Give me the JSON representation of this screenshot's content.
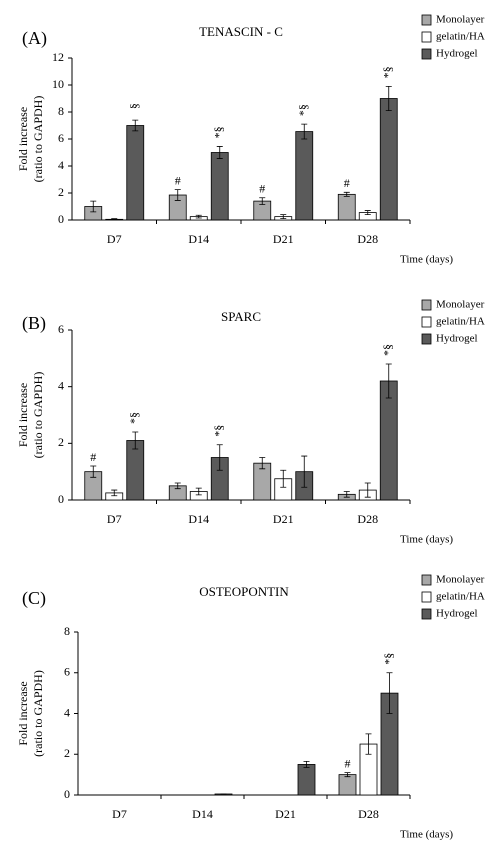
{
  "chart_data": [
    {
      "type": "bar",
      "panel_label": "(A)",
      "title": "TENASCIN - C",
      "ylabel": [
        "Fold increase",
        "(ratio to GAPDH)"
      ],
      "xlabel": "Time (days)",
      "categories": [
        "D7",
        "D14",
        "D21",
        "D28"
      ],
      "ylim": [
        0,
        12
      ],
      "yticks": [
        0,
        2,
        4,
        6,
        8,
        10,
        12
      ],
      "legend": "right",
      "series": [
        {
          "name": "Monolayer",
          "color": "#a8a8a8",
          "values": [
            1.0,
            1.85,
            1.4,
            1.9
          ],
          "errors": [
            0.4,
            0.4,
            0.25,
            0.15
          ],
          "labels": [
            null,
            "#",
            "#",
            "#"
          ]
        },
        {
          "name": "gelatin/HA",
          "color": "#ffffff",
          "values": [
            0.05,
            0.25,
            0.25,
            0.55
          ],
          "errors": [
            0.05,
            0.1,
            0.15,
            0.15
          ],
          "labels": [
            null,
            null,
            null,
            null
          ]
        },
        {
          "name": "Hydrogel",
          "color": "#5a5a5a",
          "values": [
            7.0,
            5.0,
            6.55,
            9.0
          ],
          "errors": [
            0.4,
            0.45,
            0.55,
            0.9
          ],
          "labels": [
            "§",
            "*§",
            "*§",
            "*§"
          ]
        }
      ]
    },
    {
      "type": "bar",
      "panel_label": "(B)",
      "title": "SPARC",
      "ylabel": [
        "Fold increase",
        "(ratio to GAPDH)"
      ],
      "xlabel": "Time (days)",
      "categories": [
        "D7",
        "D14",
        "D21",
        "D28"
      ],
      "ylim": [
        0,
        6
      ],
      "yticks": [
        0,
        2,
        4,
        6
      ],
      "legend": "right",
      "series": [
        {
          "name": "Monolayer",
          "color": "#a8a8a8",
          "values": [
            1.0,
            0.5,
            1.3,
            0.2
          ],
          "errors": [
            0.2,
            0.1,
            0.2,
            0.1
          ],
          "labels": [
            "#",
            null,
            null,
            null
          ]
        },
        {
          "name": "gelatin/HA",
          "color": "#ffffff",
          "values": [
            0.25,
            0.3,
            0.75,
            0.35
          ],
          "errors": [
            0.1,
            0.12,
            0.3,
            0.25
          ],
          "labels": [
            null,
            null,
            null,
            null
          ]
        },
        {
          "name": "Hydrogel",
          "color": "#5a5a5a",
          "values": [
            2.1,
            1.5,
            1.0,
            4.2
          ],
          "errors": [
            0.3,
            0.45,
            0.55,
            0.6
          ],
          "labels": [
            "*§",
            "*§",
            null,
            "*§"
          ]
        }
      ]
    },
    {
      "type": "bar",
      "panel_label": "(C)",
      "title": "OSTEOPONTIN",
      "ylabel": [
        "Fold increase",
        "(ratio to GAPDH)"
      ],
      "xlabel": "Time (days)",
      "categories": [
        "D7",
        "D14",
        "D21",
        "D28"
      ],
      "ylim": [
        0,
        8
      ],
      "yticks": [
        0,
        2,
        4,
        6,
        8
      ],
      "legend": "right",
      "series": [
        {
          "name": "Monolayer",
          "color": "#a8a8a8",
          "values": [
            0,
            0,
            0,
            1.0
          ],
          "errors": [
            0,
            0,
            0,
            0.1
          ],
          "labels": [
            null,
            null,
            null,
            "#"
          ]
        },
        {
          "name": "gelatin/HA",
          "color": "#ffffff",
          "values": [
            0,
            0,
            0,
            2.5
          ],
          "errors": [
            0,
            0,
            0,
            0.5
          ],
          "labels": [
            null,
            null,
            null,
            null
          ]
        },
        {
          "name": "Hydrogel",
          "color": "#5a5a5a",
          "values": [
            0,
            0.05,
            1.5,
            5.0
          ],
          "errors": [
            0,
            0,
            0.15,
            1.0
          ],
          "labels": [
            null,
            null,
            null,
            "*§"
          ]
        }
      ]
    }
  ]
}
